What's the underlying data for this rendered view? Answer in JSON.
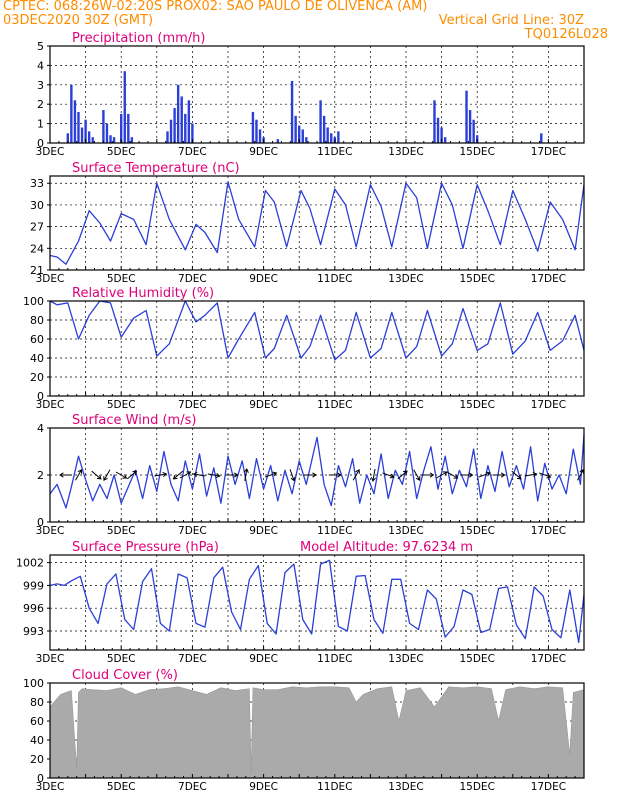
{
  "header": {
    "line1": "CPTEC:   068:26W-02:20S   PROX02: SAO PAULO DE OLIVENCA (AM)",
    "line2_left": "03DEC2020 30Z (GMT)",
    "line2_right": "Vertical Grid Line: 30Z",
    "line3_right": "TQ0126L028"
  },
  "colors": {
    "header": "#ff8c00",
    "title": "#e0007a",
    "line": "#2b3fd8",
    "bar": "#2b3fd8",
    "cloud": "#aaaaaa"
  },
  "x_tick_labels": [
    "3DEC",
    "5DEC",
    "7DEC",
    "9DEC",
    "11DEC",
    "13DEC",
    "15DEC",
    "17DEC"
  ],
  "chart_data": [
    {
      "id": "precip",
      "type": "bar",
      "title": "Precipitation (mm/h)",
      "x_range_days": [
        3,
        18
      ],
      "ylim": [
        0,
        5
      ],
      "yticks": [
        0,
        1,
        2,
        3,
        4,
        5
      ],
      "x": [
        3.5,
        3.6,
        3.7,
        3.8,
        3.9,
        4.0,
        4.1,
        4.2,
        4.5,
        4.6,
        4.7,
        4.8,
        5.0,
        5.1,
        5.2,
        5.3,
        6.3,
        6.4,
        6.5,
        6.6,
        6.7,
        6.8,
        6.9,
        7.0,
        8.7,
        8.8,
        8.9,
        9.0,
        9.4,
        9.8,
        9.9,
        10.0,
        10.1,
        10.2,
        10.6,
        10.7,
        10.8,
        10.9,
        11.0,
        11.1,
        13.8,
        13.9,
        14.0,
        14.1,
        14.7,
        14.8,
        14.9,
        15.0,
        16.8
      ],
      "values": [
        0.5,
        3.0,
        2.2,
        1.6,
        0.8,
        1.2,
        0.6,
        0.3,
        1.7,
        1.0,
        0.4,
        0.3,
        1.5,
        3.7,
        1.5,
        0.3,
        0.6,
        1.2,
        1.8,
        3.0,
        2.4,
        1.5,
        2.2,
        1.0,
        1.6,
        1.2,
        0.7,
        0.3,
        0.2,
        3.2,
        1.4,
        0.9,
        0.7,
        0.3,
        2.2,
        1.4,
        0.8,
        0.5,
        0.3,
        0.6,
        2.2,
        1.3,
        0.8,
        0.3,
        2.7,
        1.7,
        1.2,
        0.4,
        0.5
      ]
    },
    {
      "id": "temp",
      "type": "line",
      "title": "Surface Temperature (nC)",
      "x_range_days": [
        3,
        18
      ],
      "ylim": [
        21,
        34
      ],
      "yticks": [
        21,
        24,
        27,
        30,
        33
      ],
      "x": [
        3.0,
        3.2,
        3.45,
        3.8,
        4.1,
        4.4,
        4.7,
        5.0,
        5.35,
        5.7,
        6.0,
        6.35,
        6.8,
        7.1,
        7.35,
        7.7,
        8.0,
        8.3,
        8.75,
        9.05,
        9.3,
        9.65,
        10.05,
        10.3,
        10.6,
        11.0,
        11.3,
        11.6,
        12.0,
        12.3,
        12.6,
        13.0,
        13.3,
        13.6,
        14.0,
        14.3,
        14.6,
        15.0,
        15.3,
        15.65,
        16.0,
        16.35,
        16.7,
        17.05,
        17.4,
        17.75,
        18.0
      ],
      "values": [
        23.0,
        22.8,
        21.8,
        25.0,
        29.2,
        27.5,
        25.0,
        28.8,
        28.0,
        24.5,
        33.0,
        28.0,
        23.8,
        27.3,
        26.2,
        23.4,
        33.2,
        28.0,
        24.2,
        32.0,
        30.4,
        24.2,
        32.0,
        29.5,
        24.5,
        32.2,
        30.0,
        24.2,
        32.8,
        29.8,
        24.2,
        33.0,
        31.0,
        24.0,
        33.0,
        30.0,
        24.0,
        32.8,
        29.2,
        24.5,
        32.0,
        28.0,
        23.6,
        30.4,
        28.0,
        23.8,
        32.8
      ]
    },
    {
      "id": "rh",
      "type": "line",
      "title": "Relative Humidity (%)",
      "x_range_days": [
        3,
        18
      ],
      "ylim": [
        0,
        100
      ],
      "yticks": [
        0,
        20,
        40,
        60,
        80,
        100
      ],
      "x": [
        3.0,
        3.2,
        3.5,
        3.8,
        4.1,
        4.4,
        4.7,
        5.0,
        5.35,
        5.7,
        6.0,
        6.35,
        6.8,
        7.1,
        7.35,
        7.7,
        8.0,
        8.3,
        8.75,
        9.05,
        9.3,
        9.65,
        10.05,
        10.3,
        10.6,
        11.0,
        11.3,
        11.6,
        12.0,
        12.3,
        12.6,
        13.0,
        13.3,
        13.6,
        14.0,
        14.3,
        14.6,
        15.0,
        15.3,
        15.65,
        16.0,
        16.35,
        16.7,
        17.05,
        17.4,
        17.75,
        18.0
      ],
      "values": [
        100,
        96,
        98,
        60,
        85,
        100,
        98,
        62,
        82,
        90,
        42,
        55,
        100,
        78,
        85,
        98,
        40,
        60,
        88,
        40,
        50,
        85,
        40,
        52,
        85,
        38,
        48,
        88,
        40,
        50,
        88,
        40,
        52,
        90,
        42,
        55,
        92,
        48,
        55,
        98,
        44,
        58,
        88,
        48,
        58,
        85,
        48
      ]
    },
    {
      "id": "wind",
      "type": "line",
      "title": "Surface Wind (m/s)",
      "x_range_days": [
        3,
        18
      ],
      "ylim": [
        0,
        4
      ],
      "yticks": [
        0,
        2,
        4
      ],
      "x": [
        3.0,
        3.2,
        3.45,
        3.6,
        3.8,
        4.0,
        4.2,
        4.4,
        4.6,
        4.8,
        5.0,
        5.2,
        5.4,
        5.6,
        5.8,
        6.0,
        6.2,
        6.4,
        6.6,
        6.8,
        7.0,
        7.2,
        7.4,
        7.6,
        7.8,
        8.0,
        8.2,
        8.4,
        8.6,
        8.8,
        9.0,
        9.2,
        9.4,
        9.6,
        9.8,
        10.0,
        10.2,
        10.5,
        10.7,
        10.9,
        11.1,
        11.3,
        11.5,
        11.7,
        11.9,
        12.1,
        12.3,
        12.5,
        12.7,
        12.9,
        13.1,
        13.3,
        13.5,
        13.7,
        13.9,
        14.1,
        14.3,
        14.5,
        14.7,
        14.9,
        15.1,
        15.3,
        15.5,
        15.7,
        15.9,
        16.1,
        16.3,
        16.5,
        16.7,
        16.9,
        17.1,
        17.3,
        17.5,
        17.7,
        17.9,
        18.0
      ],
      "values": [
        1.2,
        1.6,
        0.6,
        1.5,
        2.8,
        1.8,
        0.9,
        1.6,
        1.0,
        2.0,
        0.8,
        1.5,
        2.2,
        1.0,
        2.4,
        1.3,
        3.0,
        1.6,
        0.9,
        2.6,
        1.4,
        2.9,
        1.1,
        2.3,
        0.8,
        2.8,
        1.6,
        2.6,
        1.0,
        2.7,
        1.4,
        2.4,
        0.9,
        2.2,
        1.2,
        2.6,
        1.6,
        3.6,
        1.6,
        0.7,
        2.4,
        1.5,
        2.7,
        0.8,
        2.0,
        1.2,
        2.9,
        1.0,
        2.2,
        1.6,
        3.0,
        1.0,
        2.2,
        3.2,
        1.4,
        2.8,
        1.2,
        2.2,
        1.5,
        3.1,
        1.0,
        2.4,
        1.3,
        3.0,
        1.5,
        2.4,
        1.4,
        3.2,
        0.9,
        2.5,
        1.4,
        2.0,
        1.2,
        3.1,
        1.6,
        3.7
      ]
    },
    {
      "id": "pres",
      "type": "line",
      "title": "Surface Pressure (hPa)",
      "annotation": "Model Altitude: 97.6234 m",
      "x_range_days": [
        3,
        18
      ],
      "ylim": [
        990.5,
        1003
      ],
      "yticks": [
        993,
        996,
        999,
        1002
      ],
      "x": [
        3.0,
        3.2,
        3.4,
        3.6,
        3.85,
        4.1,
        4.35,
        4.6,
        4.85,
        5.1,
        5.35,
        5.6,
        5.85,
        6.1,
        6.35,
        6.6,
        6.85,
        7.1,
        7.35,
        7.6,
        7.85,
        8.1,
        8.35,
        8.6,
        8.85,
        9.1,
        9.35,
        9.6,
        9.85,
        10.1,
        10.35,
        10.6,
        10.85,
        11.1,
        11.35,
        11.6,
        11.85,
        12.1,
        12.35,
        12.6,
        12.85,
        13.1,
        13.35,
        13.6,
        13.85,
        14.1,
        14.35,
        14.6,
        14.85,
        15.1,
        15.35,
        15.6,
        15.85,
        16.1,
        16.35,
        16.6,
        16.85,
        17.1,
        17.35,
        17.6,
        17.85,
        18.0
      ],
      "values": [
        999.0,
        999.2,
        999.0,
        999.6,
        1000.2,
        996.0,
        994.0,
        999.2,
        1000.5,
        994.5,
        993.2,
        999.5,
        1001.2,
        994.0,
        993.0,
        1000.5,
        1000.0,
        994.0,
        993.5,
        1000.0,
        1001.4,
        995.5,
        993.2,
        999.8,
        1001.6,
        994.0,
        992.6,
        1000.7,
        1001.8,
        994.5,
        992.6,
        1001.8,
        1002.3,
        993.6,
        993.0,
        1000.2,
        1000.3,
        994.5,
        992.7,
        999.8,
        999.8,
        994.0,
        993.2,
        998.4,
        997.2,
        992.2,
        993.6,
        998.4,
        997.8,
        992.8,
        993.2,
        998.6,
        998.8,
        993.8,
        992.0,
        998.8,
        997.6,
        993.2,
        992.1,
        998.4,
        991.5,
        997.8
      ]
    },
    {
      "id": "cloud",
      "type": "area",
      "title": "Cloud Cover (%)",
      "x_range_days": [
        3,
        18
      ],
      "ylim": [
        0,
        100
      ],
      "yticks": [
        0,
        20,
        40,
        60,
        80,
        100
      ],
      "x": [
        3.0,
        3.3,
        3.6,
        3.75,
        3.8,
        3.9,
        4.2,
        4.6,
        5.0,
        5.4,
        5.8,
        6.2,
        6.6,
        7.0,
        7.4,
        7.8,
        8.2,
        8.6,
        8.65,
        8.7,
        9.0,
        9.4,
        9.8,
        10.2,
        10.6,
        11.0,
        11.4,
        11.6,
        11.8,
        12.2,
        12.6,
        12.8,
        13.0,
        13.4,
        13.8,
        14.2,
        14.6,
        15.0,
        15.4,
        15.6,
        15.8,
        16.2,
        16.6,
        17.0,
        17.4,
        17.6,
        17.7,
        17.9,
        18.0
      ],
      "values": [
        75,
        88,
        92,
        10,
        90,
        94,
        93,
        92,
        95,
        88,
        93,
        94,
        96,
        92,
        88,
        95,
        92,
        94,
        5,
        95,
        93,
        93,
        96,
        95,
        96,
        96,
        95,
        80,
        88,
        94,
        96,
        60,
        92,
        95,
        75,
        96,
        95,
        96,
        94,
        60,
        93,
        96,
        94,
        96,
        95,
        25,
        90,
        92,
        93
      ]
    }
  ],
  "wind_arrows": [
    [
      3.45,
      180
    ],
    [
      3.8,
      60
    ],
    [
      4.3,
      -40
    ],
    [
      4.6,
      -120
    ],
    [
      5.0,
      -30
    ],
    [
      5.3,
      40
    ],
    [
      6.1,
      10
    ],
    [
      6.6,
      -140
    ],
    [
      6.8,
      30
    ],
    [
      7.2,
      170
    ],
    [
      7.6,
      -10
    ],
    [
      8.1,
      0
    ],
    [
      8.5,
      80
    ],
    [
      9.2,
      20
    ],
    [
      9.8,
      -70
    ],
    [
      10.3,
      0
    ],
    [
      11.0,
      0
    ],
    [
      11.6,
      60
    ],
    [
      12.1,
      -100
    ],
    [
      12.5,
      -20
    ],
    [
      12.9,
      40
    ],
    [
      13.3,
      -60
    ],
    [
      13.6,
      0
    ],
    [
      14.0,
      30
    ],
    [
      14.3,
      -30
    ],
    [
      14.7,
      0
    ],
    [
      15.2,
      20
    ],
    [
      15.6,
      0
    ],
    [
      16.1,
      -40
    ],
    [
      16.5,
      10
    ],
    [
      16.9,
      -20
    ],
    [
      17.9,
      60
    ]
  ]
}
